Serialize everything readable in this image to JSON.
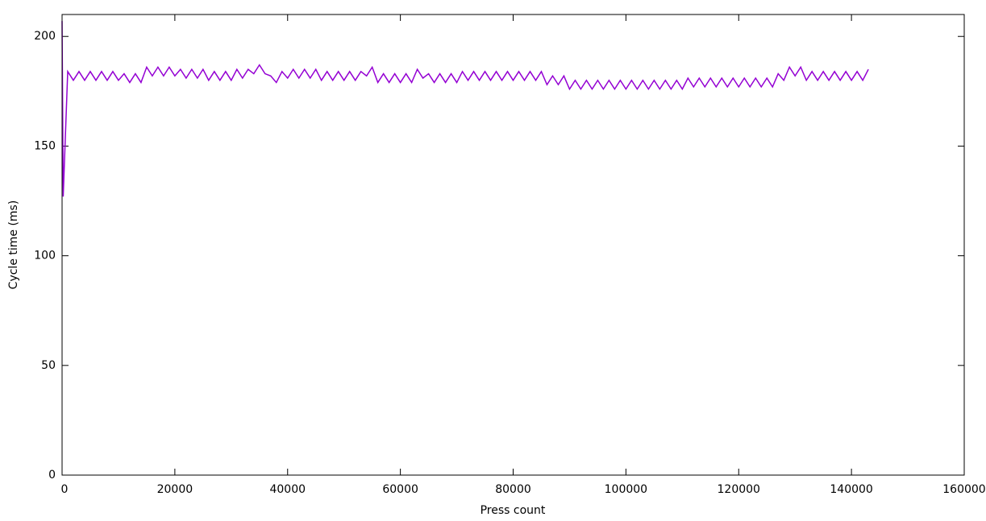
{
  "chart_data": {
    "type": "line",
    "x_label": "Press count",
    "y_label": "Cycle time (ms)",
    "xlim": [
      0,
      160000
    ],
    "ylim": [
      0,
      210
    ],
    "xticks": [
      0,
      20000,
      40000,
      60000,
      80000,
      100000,
      120000,
      140000,
      160000
    ],
    "yticks": [
      0,
      50,
      100,
      150,
      200
    ],
    "color": "#9400d3",
    "x": [
      0,
      200,
      1000,
      2000,
      3000,
      4000,
      5000,
      6000,
      7000,
      8000,
      9000,
      10000,
      11000,
      12000,
      13000,
      14000,
      15000,
      16000,
      17000,
      18000,
      19000,
      20000,
      21000,
      22000,
      23000,
      24000,
      25000,
      26000,
      27000,
      28000,
      29000,
      30000,
      31000,
      32000,
      33000,
      34000,
      35000,
      36000,
      37000,
      38000,
      39000,
      40000,
      41000,
      42000,
      43000,
      44000,
      45000,
      46000,
      47000,
      48000,
      49000,
      50000,
      51000,
      52000,
      53000,
      54000,
      55000,
      56000,
      57000,
      58000,
      59000,
      60000,
      61000,
      62000,
      63000,
      64000,
      65000,
      66000,
      67000,
      68000,
      69000,
      70000,
      71000,
      72000,
      73000,
      74000,
      75000,
      76000,
      77000,
      78000,
      79000,
      80000,
      81000,
      82000,
      83000,
      84000,
      85000,
      86000,
      87000,
      88000,
      89000,
      90000,
      91000,
      92000,
      93000,
      94000,
      95000,
      96000,
      97000,
      98000,
      99000,
      100000,
      101000,
      102000,
      103000,
      104000,
      105000,
      106000,
      107000,
      108000,
      109000,
      110000,
      111000,
      112000,
      113000,
      114000,
      115000,
      116000,
      117000,
      118000,
      119000,
      120000,
      121000,
      122000,
      123000,
      124000,
      125000,
      126000,
      127000,
      128000,
      129000,
      130000,
      131000,
      132000,
      133000,
      134000,
      135000,
      136000,
      137000,
      138000,
      139000,
      140000,
      141000,
      142000,
      143000
    ],
    "values": [
      207,
      127,
      184,
      180,
      184,
      180,
      184,
      180,
      184,
      180,
      184,
      180,
      183,
      179,
      183,
      179,
      186,
      182,
      186,
      182,
      186,
      182,
      185,
      181,
      185,
      181,
      185,
      180,
      184,
      180,
      184,
      180,
      185,
      181,
      185,
      183,
      187,
      183,
      182,
      179,
      184,
      181,
      185,
      181,
      185,
      181,
      185,
      180,
      184,
      180,
      184,
      180,
      184,
      180,
      184,
      182,
      186,
      179,
      183,
      179,
      183,
      179,
      183,
      179,
      185,
      181,
      183,
      179,
      183,
      179,
      183,
      179,
      184,
      180,
      184,
      180,
      184,
      180,
      184,
      180,
      184,
      180,
      184,
      180,
      184,
      180,
      184,
      178,
      182,
      178,
      182,
      176,
      180,
      176,
      180,
      176,
      180,
      176,
      180,
      176,
      180,
      176,
      180,
      176,
      180,
      176,
      180,
      176,
      180,
      176,
      180,
      176,
      181,
      177,
      181,
      177,
      181,
      177,
      181,
      177,
      181,
      177,
      181,
      177,
      181,
      177,
      181,
      177,
      183,
      180,
      186,
      182,
      186,
      180,
      184,
      180,
      184,
      180,
      184,
      180,
      184,
      180,
      184,
      180,
      185
    ]
  }
}
